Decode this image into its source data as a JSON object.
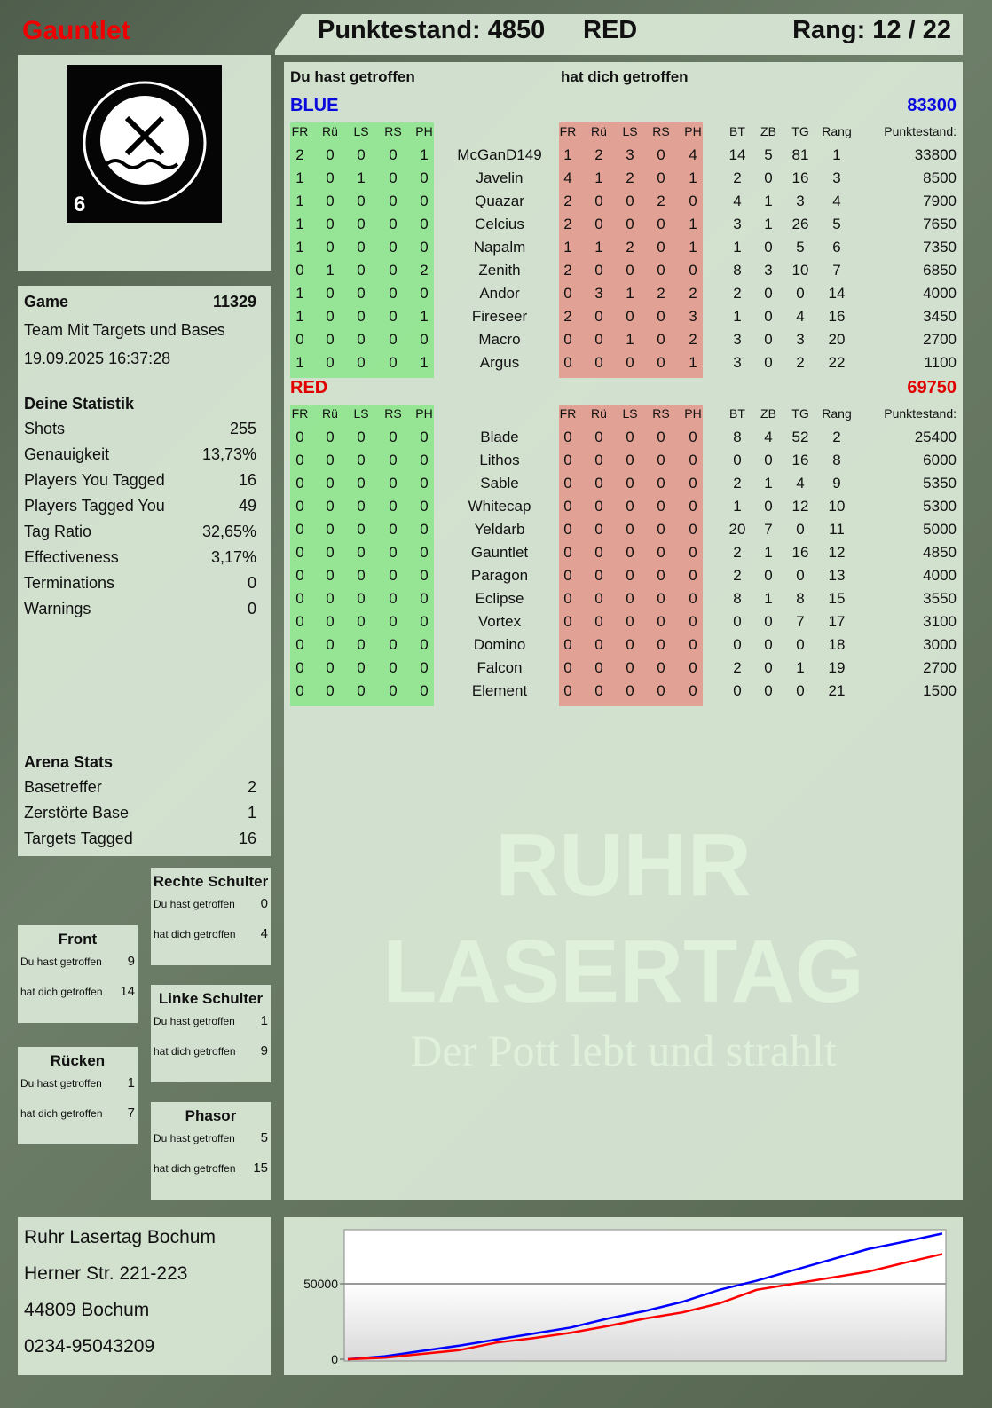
{
  "header": {
    "player": "Gauntlet",
    "score_label": "Punktestand: 4850",
    "team": "RED",
    "rank": "Rang: 12 / 22"
  },
  "logo": {
    "text": "RUHR LASERTAG",
    "badge": "6"
  },
  "game": {
    "label": "Game",
    "id": "11329",
    "mode": "Team Mit Targets und Bases",
    "datetime": "19.09.2025 16:37:28"
  },
  "stats": {
    "title": "Deine Statistik",
    "items": [
      {
        "label": "Shots",
        "value": "255"
      },
      {
        "label": "Genauigkeit",
        "value": "13,73%"
      },
      {
        "label": "Players You Tagged",
        "value": "16"
      },
      {
        "label": "Players Tagged You",
        "value": "49"
      },
      {
        "label": "Tag Ratio",
        "value": "32,65%"
      },
      {
        "label": "Effectiveness",
        "value": "3,17%"
      },
      {
        "label": "Terminations",
        "value": "0"
      },
      {
        "label": "Warnings",
        "value": "0"
      }
    ]
  },
  "arena": {
    "title": "Arena Stats",
    "items": [
      {
        "label": "Basetreffer",
        "value": "2"
      },
      {
        "label": "Zerstörte Base",
        "value": "1"
      },
      {
        "label": "Targets Tagged",
        "value": "16"
      }
    ]
  },
  "bodyparts": {
    "hit_label": "Du hast getroffen",
    "got_label": "hat dich getroffen",
    "items": [
      {
        "name": "Front",
        "hit": "9",
        "got": "14"
      },
      {
        "name": "Rechte Schulter",
        "hit": "0",
        "got": "4"
      },
      {
        "name": "Linke Schulter",
        "hit": "1",
        "got": "9"
      },
      {
        "name": "Rücken",
        "hit": "1",
        "got": "7"
      },
      {
        "name": "Phasor",
        "hit": "5",
        "got": "15"
      }
    ]
  },
  "address": {
    "lines": [
      "Ruhr Lasertag Bochum",
      "Herner Str. 221-223",
      "44809 Bochum",
      "0234-95043209"
    ]
  },
  "table": {
    "you_hit": "Du hast getroffen",
    "hit_you": "hat dich getroffen",
    "cols": [
      "FR",
      "Rü",
      "LS",
      "RS",
      "PH"
    ],
    "extra_cols": [
      "BT",
      "ZB",
      "TG",
      "Rang",
      "Punktestand:"
    ],
    "teams": [
      {
        "name": "BLUE",
        "score": "83300",
        "color": "#0a0adc",
        "rows": [
          [
            "2",
            "0",
            "0",
            "0",
            "1",
            "McGanD149",
            "1",
            "2",
            "3",
            "0",
            "4",
            "14",
            "5",
            "81",
            "1",
            "33800"
          ],
          [
            "1",
            "0",
            "1",
            "0",
            "0",
            "Javelin",
            "4",
            "1",
            "2",
            "0",
            "1",
            "2",
            "0",
            "16",
            "3",
            "8500"
          ],
          [
            "1",
            "0",
            "0",
            "0",
            "0",
            "Quazar",
            "2",
            "0",
            "0",
            "2",
            "0",
            "4",
            "1",
            "3",
            "4",
            "7900"
          ],
          [
            "1",
            "0",
            "0",
            "0",
            "0",
            "Celcius",
            "2",
            "0",
            "0",
            "0",
            "1",
            "3",
            "1",
            "26",
            "5",
            "7650"
          ],
          [
            "1",
            "0",
            "0",
            "0",
            "0",
            "Napalm",
            "1",
            "1",
            "2",
            "0",
            "1",
            "1",
            "0",
            "5",
            "6",
            "7350"
          ],
          [
            "0",
            "1",
            "0",
            "0",
            "2",
            "Zenith",
            "2",
            "0",
            "0",
            "0",
            "0",
            "8",
            "3",
            "10",
            "7",
            "6850"
          ],
          [
            "1",
            "0",
            "0",
            "0",
            "0",
            "Andor",
            "0",
            "3",
            "1",
            "2",
            "2",
            "2",
            "0",
            "0",
            "14",
            "4000"
          ],
          [
            "1",
            "0",
            "0",
            "0",
            "1",
            "Fireseer",
            "2",
            "0",
            "0",
            "0",
            "3",
            "1",
            "0",
            "4",
            "16",
            "3450"
          ],
          [
            "0",
            "0",
            "0",
            "0",
            "0",
            "Macro",
            "0",
            "0",
            "1",
            "0",
            "2",
            "3",
            "0",
            "3",
            "20",
            "2700"
          ],
          [
            "1",
            "0",
            "0",
            "0",
            "1",
            "Argus",
            "0",
            "0",
            "0",
            "0",
            "1",
            "3",
            "0",
            "2",
            "22",
            "1100"
          ]
        ]
      },
      {
        "name": "RED",
        "score": "69750",
        "color": "#e00000",
        "rows": [
          [
            "0",
            "0",
            "0",
            "0",
            "0",
            "Blade",
            "0",
            "0",
            "0",
            "0",
            "0",
            "8",
            "4",
            "52",
            "2",
            "25400"
          ],
          [
            "0",
            "0",
            "0",
            "0",
            "0",
            "Lithos",
            "0",
            "0",
            "0",
            "0",
            "0",
            "0",
            "0",
            "16",
            "8",
            "6000"
          ],
          [
            "0",
            "0",
            "0",
            "0",
            "0",
            "Sable",
            "0",
            "0",
            "0",
            "0",
            "0",
            "2",
            "1",
            "4",
            "9",
            "5350"
          ],
          [
            "0",
            "0",
            "0",
            "0",
            "0",
            "Whitecap",
            "0",
            "0",
            "0",
            "0",
            "0",
            "1",
            "0",
            "12",
            "10",
            "5300"
          ],
          [
            "0",
            "0",
            "0",
            "0",
            "0",
            "Yeldarb",
            "0",
            "0",
            "0",
            "0",
            "0",
            "20",
            "7",
            "0",
            "11",
            "5000"
          ],
          [
            "0",
            "0",
            "0",
            "0",
            "0",
            "Gauntlet",
            "0",
            "0",
            "0",
            "0",
            "0",
            "2",
            "1",
            "16",
            "12",
            "4850"
          ],
          [
            "0",
            "0",
            "0",
            "0",
            "0",
            "Paragon",
            "0",
            "0",
            "0",
            "0",
            "0",
            "2",
            "0",
            "0",
            "13",
            "4000"
          ],
          [
            "0",
            "0",
            "0",
            "0",
            "0",
            "Eclipse",
            "0",
            "0",
            "0",
            "0",
            "0",
            "8",
            "1",
            "8",
            "15",
            "3550"
          ],
          [
            "0",
            "0",
            "0",
            "0",
            "0",
            "Vortex",
            "0",
            "0",
            "0",
            "0",
            "0",
            "0",
            "0",
            "7",
            "17",
            "3100"
          ],
          [
            "0",
            "0",
            "0",
            "0",
            "0",
            "Domino",
            "0",
            "0",
            "0",
            "0",
            "0",
            "0",
            "0",
            "0",
            "18",
            "3000"
          ],
          [
            "0",
            "0",
            "0",
            "0",
            "0",
            "Falcon",
            "0",
            "0",
            "0",
            "0",
            "0",
            "2",
            "0",
            "1",
            "19",
            "2700"
          ],
          [
            "0",
            "0",
            "0",
            "0",
            "0",
            "Element",
            "0",
            "0",
            "0",
            "0",
            "0",
            "0",
            "0",
            "0",
            "21",
            "1500"
          ]
        ]
      }
    ]
  },
  "watermark": {
    "line1": "RUHR",
    "line2": "LASERTAG",
    "line3": "Der Pott lebt und strahlt"
  },
  "chart_data": {
    "type": "line",
    "yticks": [
      "0",
      "50000"
    ],
    "ylim": [
      0,
      85000
    ],
    "grid": true,
    "series": [
      {
        "color": "#0000ff",
        "values": [
          0,
          2000,
          5500,
          9000,
          13000,
          17000,
          21000,
          27000,
          32000,
          38000,
          46000,
          52000,
          59000,
          66000,
          73000,
          78000,
          83300
        ]
      },
      {
        "color": "#ff0000",
        "values": [
          0,
          1000,
          3500,
          6000,
          11000,
          14000,
          17500,
          22000,
          27000,
          31000,
          37000,
          46000,
          50000,
          54000,
          58000,
          64000,
          69750
        ]
      }
    ]
  }
}
